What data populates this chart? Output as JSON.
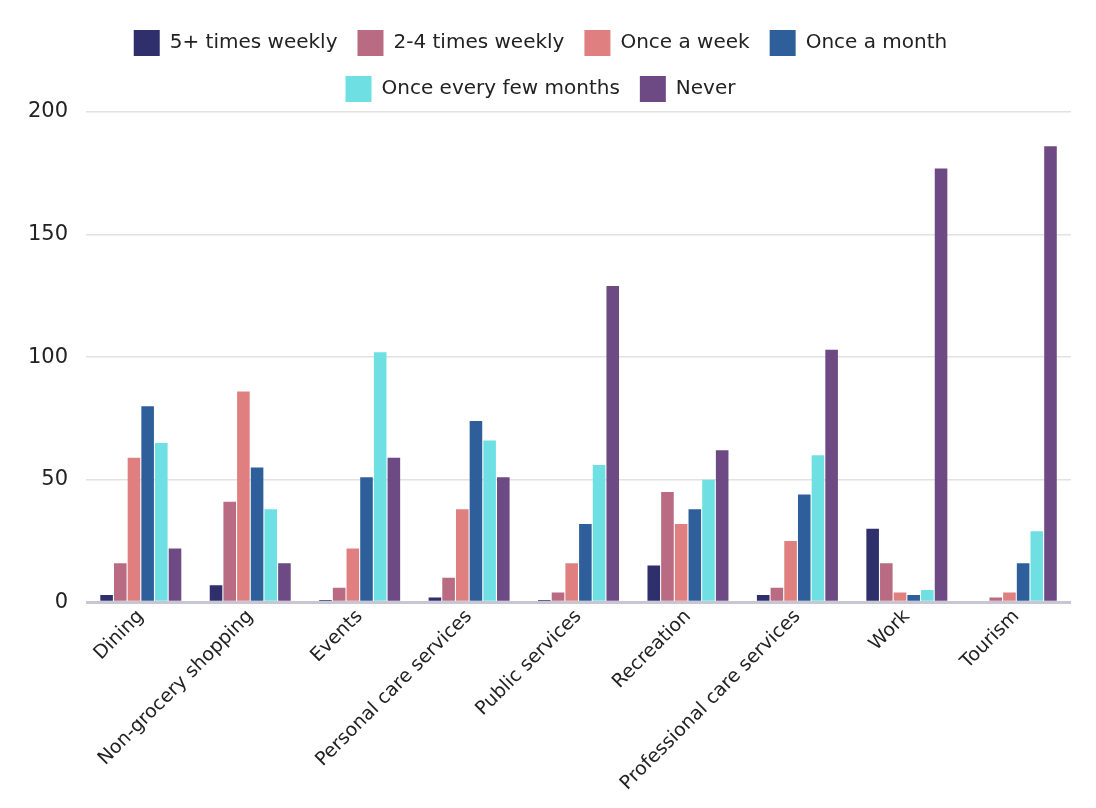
{
  "chart_data": {
    "type": "bar",
    "categories": [
      "Dining",
      "Non-grocery shopping",
      "Events",
      "Personal care services",
      "Public services",
      "Recreation",
      "Professional care services",
      "Work",
      "Tourism"
    ],
    "series": [
      {
        "name": "5+ times weekly",
        "color": "#2e2f6b",
        "values": [
          3,
          7,
          1,
          2,
          1,
          15,
          3,
          30,
          0
        ]
      },
      {
        "name": "2-4 times weekly",
        "color": "#b86b82",
        "values": [
          16,
          41,
          6,
          10,
          4,
          45,
          6,
          16,
          2
        ]
      },
      {
        "name": "Once a week",
        "color": "#e07f7f",
        "values": [
          59,
          86,
          22,
          38,
          16,
          32,
          25,
          4,
          4
        ]
      },
      {
        "name": "Once a month",
        "color": "#2f5f9a",
        "values": [
          80,
          55,
          51,
          74,
          32,
          38,
          44,
          3,
          16
        ]
      },
      {
        "name": "Once every few months",
        "color": "#6ee0e3",
        "values": [
          65,
          38,
          102,
          66,
          56,
          50,
          60,
          5,
          29
        ]
      },
      {
        "name": "Never",
        "color": "#6e4a85",
        "values": [
          22,
          16,
          59,
          51,
          129,
          62,
          103,
          177,
          186
        ]
      }
    ],
    "ylim": [
      0,
      200
    ],
    "yticks": [
      0,
      50,
      100,
      150,
      200
    ],
    "grid": "y",
    "legend": "top"
  }
}
